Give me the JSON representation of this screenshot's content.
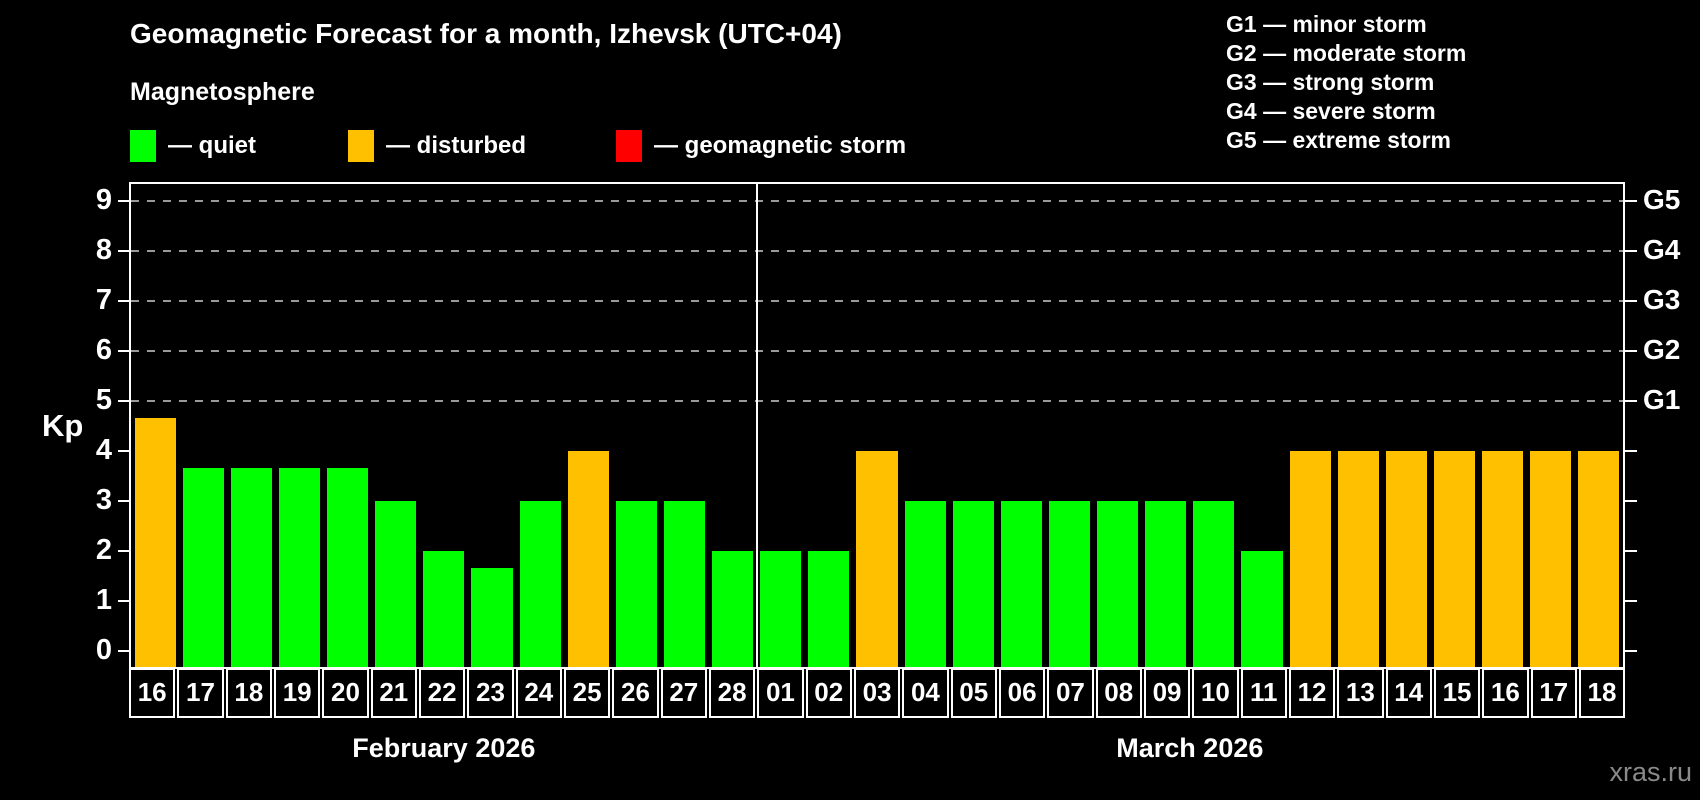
{
  "legend": {
    "items": [
      {
        "name": "quiet",
        "label": "— quiet",
        "color": "#00FF00"
      },
      {
        "name": "disturbed",
        "label": "— disturbed",
        "color": "#FFC000"
      },
      {
        "name": "storm",
        "label": "— geomagnetic storm",
        "color": "#FF0000"
      }
    ]
  },
  "g_scale_legend": {
    "lines": [
      "G1 — minor storm",
      "G2 — moderate storm",
      "G3 — strong storm",
      "G4 — severe storm",
      "G5 — extreme storm"
    ]
  },
  "watermark": "xras.ru",
  "chart_data": {
    "type": "bar",
    "title": "Geomagnetic Forecast for a month, Izhevsk (UTC+04)",
    "subtitle": "Magnetosphere",
    "ylabel": "Kp",
    "ylim": [
      0,
      9
    ],
    "yticks": [
      0,
      1,
      2,
      3,
      4,
      5,
      6,
      7,
      8,
      9
    ],
    "grid_levels": [
      5,
      6,
      7,
      8,
      9
    ],
    "right_axis_labels": {
      "5": "G1",
      "6": "G2",
      "7": "G3",
      "8": "G4",
      "9": "G5"
    },
    "colors": {
      "quiet": "#00FF00",
      "disturbed": "#FFC000",
      "storm": "#FF0000"
    },
    "months": [
      {
        "label": "February 2026",
        "days": [
          {
            "day": "16",
            "kp": 4.67,
            "status": "disturbed"
          },
          {
            "day": "17",
            "kp": 3.67,
            "status": "quiet"
          },
          {
            "day": "18",
            "kp": 3.67,
            "status": "quiet"
          },
          {
            "day": "19",
            "kp": 3.67,
            "status": "quiet"
          },
          {
            "day": "20",
            "kp": 3.67,
            "status": "quiet"
          },
          {
            "day": "21",
            "kp": 3,
            "status": "quiet"
          },
          {
            "day": "22",
            "kp": 2,
            "status": "quiet"
          },
          {
            "day": "23",
            "kp": 1.67,
            "status": "quiet"
          },
          {
            "day": "24",
            "kp": 3,
            "status": "quiet"
          },
          {
            "day": "25",
            "kp": 4,
            "status": "disturbed"
          },
          {
            "day": "26",
            "kp": 3,
            "status": "quiet"
          },
          {
            "day": "27",
            "kp": 3,
            "status": "quiet"
          },
          {
            "day": "28",
            "kp": 2,
            "status": "quiet"
          }
        ]
      },
      {
        "label": "March 2026",
        "days": [
          {
            "day": "01",
            "kp": 2,
            "status": "quiet"
          },
          {
            "day": "02",
            "kp": 2,
            "status": "quiet"
          },
          {
            "day": "03",
            "kp": 4,
            "status": "disturbed"
          },
          {
            "day": "04",
            "kp": 3,
            "status": "quiet"
          },
          {
            "day": "05",
            "kp": 3,
            "status": "quiet"
          },
          {
            "day": "06",
            "kp": 3,
            "status": "quiet"
          },
          {
            "day": "07",
            "kp": 3,
            "status": "quiet"
          },
          {
            "day": "08",
            "kp": 3,
            "status": "quiet"
          },
          {
            "day": "09",
            "kp": 3,
            "status": "quiet"
          },
          {
            "day": "10",
            "kp": 3,
            "status": "quiet"
          },
          {
            "day": "11",
            "kp": 2,
            "status": "quiet"
          },
          {
            "day": "12",
            "kp": 4,
            "status": "disturbed"
          },
          {
            "day": "13",
            "kp": 4,
            "status": "disturbed"
          },
          {
            "day": "14",
            "kp": 4,
            "status": "disturbed"
          },
          {
            "day": "15",
            "kp": 4,
            "status": "disturbed"
          },
          {
            "day": "16",
            "kp": 4,
            "status": "disturbed"
          },
          {
            "day": "17",
            "kp": 4,
            "status": "disturbed"
          },
          {
            "day": "18",
            "kp": 4,
            "status": "disturbed"
          }
        ]
      }
    ]
  }
}
